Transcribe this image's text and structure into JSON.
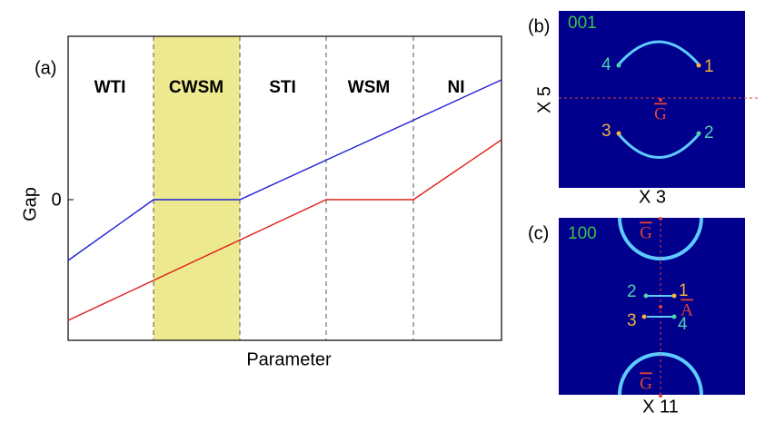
{
  "panel_a": {
    "label": "(a)",
    "phases": [
      "WTI",
      "CWSM",
      "STI",
      "WSM",
      "NI"
    ],
    "y_axis_label": "Gap",
    "y_tick": "0",
    "x_axis_label": "Parameter"
  },
  "panel_b": {
    "label": "(b)",
    "surface": "001",
    "vertical_scale": "X 5",
    "horizontal_scale": "X 3",
    "point_labels": [
      "1",
      "2",
      "3",
      "4"
    ],
    "center_label": "G"
  },
  "panel_c": {
    "label": "(c)",
    "surface": "100",
    "horizontal_scale": "X 11",
    "point_labels": [
      "1",
      "2",
      "3",
      "4"
    ],
    "top_label": "G",
    "bottom_label": "G",
    "center_label": "A"
  }
}
